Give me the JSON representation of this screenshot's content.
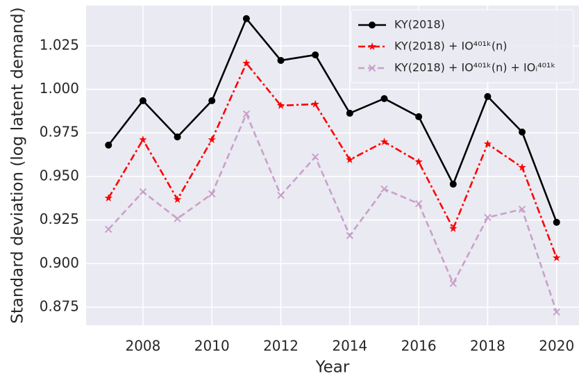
{
  "chart_data": {
    "type": "line",
    "xlabel": "Year",
    "ylabel": "Standard deviation (log latent demand)",
    "x": [
      2007,
      2008,
      2009,
      2010,
      2011,
      2012,
      2013,
      2014,
      2015,
      2016,
      2017,
      2018,
      2019,
      2020
    ],
    "series": [
      {
        "name": "KY(2018)",
        "color": "#000000",
        "marker": "o",
        "dash": "solid",
        "values": [
          0.968,
          0.9935,
          0.9727,
          0.9935,
          1.0406,
          1.0166,
          1.0198,
          0.9863,
          0.9947,
          0.9843,
          0.9456,
          0.9959,
          0.9755,
          0.9237
        ]
      },
      {
        "name": "KY(2018) + IO⁴⁰¹ᵏ(n)",
        "color": "#ff0000",
        "marker": "*",
        "dash": "dashdot",
        "values": [
          0.9376,
          0.9711,
          0.9368,
          0.9711,
          1.015,
          0.9907,
          0.9915,
          0.9596,
          0.9699,
          0.9584,
          0.9201,
          0.9687,
          0.9552,
          0.9033
        ]
      },
      {
        "name": "KY(2018) + IO⁴⁰¹ᵏ(n) + IOᵢ⁴⁰¹ᵏ",
        "color": "#c9a0c9",
        "marker": "x",
        "dash": "dashed",
        "values": [
          0.9197,
          0.9412,
          0.9258,
          0.94,
          0.9859,
          0.9392,
          0.9612,
          0.9161,
          0.9428,
          0.9344,
          0.8886,
          0.9265,
          0.9312,
          0.8722
        ]
      }
    ],
    "xlim": [
      2006.35,
      2020.65
    ],
    "ylim": [
      0.8646,
      1.0481
    ],
    "xticks": [
      2008,
      2010,
      2012,
      2014,
      2016,
      2018,
      2020
    ],
    "yticks": [
      {
        "value": 0.875,
        "label": "0.875"
      },
      {
        "value": 0.9,
        "label": "0.900"
      },
      {
        "value": 0.925,
        "label": "0.925"
      },
      {
        "value": 0.95,
        "label": "0.950"
      },
      {
        "value": 0.975,
        "label": "0.975"
      },
      {
        "value": 1.0,
        "label": "1.000"
      },
      {
        "value": 1.025,
        "label": "1.025"
      }
    ],
    "grid": true,
    "legend": "upper right"
  }
}
